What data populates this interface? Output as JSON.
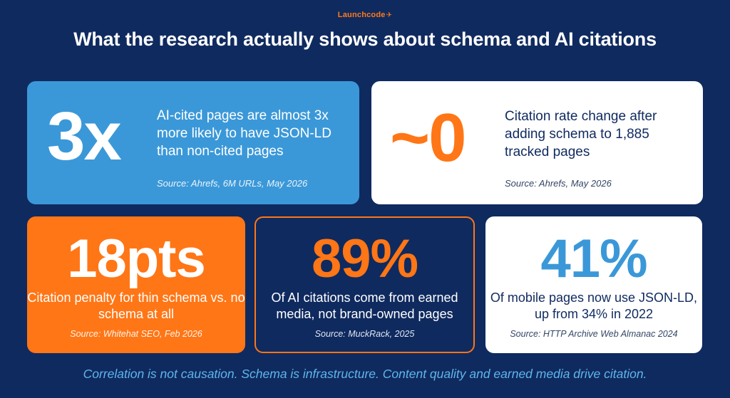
{
  "brand": {
    "logo_text": "Launchcode",
    "logo_icon": "plane-icon"
  },
  "title": "What the research actually shows about schema and AI citations",
  "stats": [
    {
      "value": "3x",
      "description": "AI-cited pages are almost 3x more likely to have JSON-LD than non-cited pages",
      "source": "Source: Ahrefs, 6M URLs, May 2026"
    },
    {
      "value": "~0",
      "description": "Citation rate change after adding schema to 1,885 tracked pages",
      "source": "Source: Ahrefs, May 2026"
    },
    {
      "value": "18pts",
      "description": "Citation penalty for thin schema vs. no schema at all",
      "source": "Source: Whitehat SEO, Feb 2026"
    },
    {
      "value": "89%",
      "description": "Of AI citations come from earned media, not brand-owned pages",
      "source": "Source: MuckRack, 2025"
    },
    {
      "value": "41%",
      "description": "Of mobile pages now use JSON-LD, up from 34% in 2022",
      "source": "Source: HTTP Archive Web Almanac 2024"
    }
  ],
  "footer": "Correlation is not causation. Schema is infrastructure. Content quality and earned media drive citation.",
  "colors": {
    "navy": "#0f2a5f",
    "blue": "#3b98d8",
    "orange": "#ff7616",
    "white": "#ffffff"
  }
}
